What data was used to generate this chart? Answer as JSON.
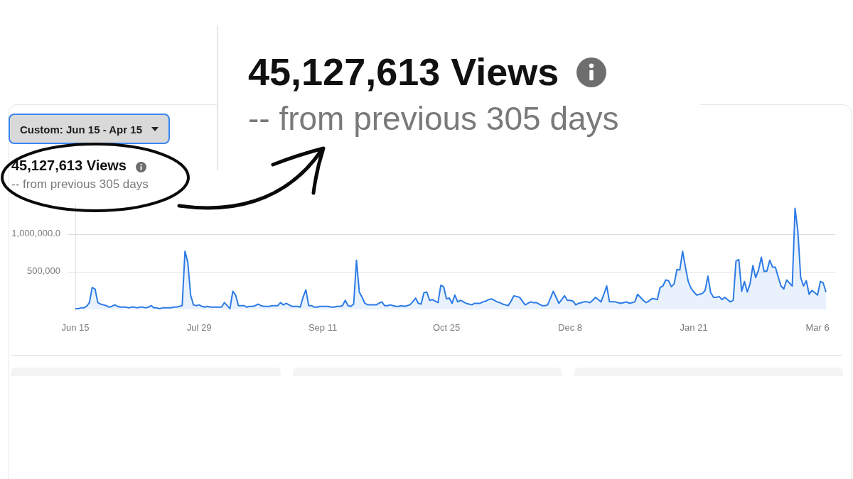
{
  "chart_data": {
    "type": "area",
    "title": "45,127,613 Views",
    "subtitle": "-- from previous 305 days",
    "annotations": [
      "Custom: Jun 15 - Apr 15"
    ],
    "categories": [
      "Jun 15",
      null,
      null,
      null,
      null,
      null,
      null,
      null,
      null,
      null,
      null,
      null,
      null,
      null,
      null,
      null,
      null,
      null,
      null,
      null,
      null,
      null,
      null,
      null,
      null,
      null,
      null,
      null,
      null,
      null,
      null,
      null,
      null,
      null,
      null,
      null,
      null,
      null,
      null,
      null,
      null,
      null,
      null,
      null,
      "Jul 29",
      null,
      null,
      null,
      null,
      null,
      null,
      null,
      null,
      null,
      null,
      null,
      null,
      null,
      null,
      null,
      null,
      null,
      null,
      null,
      null,
      null,
      null,
      null,
      null,
      null,
      null,
      null,
      null,
      null,
      null,
      null,
      null,
      null,
      null,
      null,
      null,
      null,
      null,
      null,
      null,
      null,
      null,
      null,
      "Sep 11",
      null,
      null,
      null,
      null,
      null,
      null,
      null,
      null,
      null,
      null,
      null,
      null,
      null,
      null,
      null,
      null,
      null,
      null,
      null,
      null,
      null,
      null,
      null,
      null,
      null,
      null,
      null,
      null,
      null,
      null,
      null,
      null,
      null,
      null,
      null,
      null,
      null,
      null,
      null,
      null,
      null,
      null,
      null,
      "Oct 25",
      null,
      null,
      null,
      null,
      null,
      null,
      null,
      null,
      null,
      null,
      null,
      null,
      null,
      null,
      null,
      null,
      null,
      null,
      null,
      null,
      null,
      null,
      null,
      null,
      null,
      null,
      null,
      null,
      null,
      null,
      null,
      null,
      null,
      null,
      null,
      null,
      null,
      null,
      null,
      null,
      null,
      null,
      null,
      "Dec 8",
      null,
      null,
      null,
      null,
      null,
      null,
      null,
      null,
      null,
      null,
      null,
      null,
      null,
      null,
      null,
      null,
      null,
      null,
      null,
      null,
      null,
      null,
      null,
      null,
      null,
      null,
      null,
      null,
      null,
      null,
      null,
      null,
      null,
      null,
      null,
      null,
      null,
      null,
      null,
      null,
      null,
      null,
      null,
      "Jan 21",
      null,
      null,
      null,
      null,
      null,
      null,
      null,
      null,
      null,
      null,
      null,
      null,
      null,
      null,
      null,
      null,
      null,
      null,
      null,
      null,
      null,
      null,
      null,
      null,
      null,
      null,
      null,
      null,
      null,
      null,
      null,
      null,
      null,
      null,
      null,
      null,
      null,
      null,
      null,
      null,
      null,
      null,
      null,
      "Mar 6",
      null,
      null,
      null
    ],
    "values": [
      10000,
      10000,
      20000,
      20000,
      40000,
      90000,
      290000,
      270000,
      90000,
      70000,
      60000,
      50000,
      30000,
      40000,
      60000,
      40000,
      30000,
      30000,
      30000,
      20000,
      30000,
      30000,
      20000,
      30000,
      30000,
      20000,
      30000,
      50000,
      20000,
      20000,
      10000,
      20000,
      20000,
      20000,
      20000,
      30000,
      30000,
      40000,
      50000,
      770000,
      620000,
      190000,
      60000,
      50000,
      60000,
      40000,
      30000,
      40000,
      30000,
      30000,
      30000,
      30000,
      30000,
      90000,
      50000,
      10000,
      240000,
      190000,
      50000,
      50000,
      50000,
      30000,
      40000,
      40000,
      50000,
      70000,
      50000,
      40000,
      40000,
      40000,
      50000,
      50000,
      50000,
      90000,
      60000,
      80000,
      60000,
      40000,
      40000,
      40000,
      30000,
      160000,
      260000,
      50000,
      50000,
      30000,
      30000,
      40000,
      40000,
      40000,
      40000,
      30000,
      30000,
      40000,
      40000,
      50000,
      120000,
      50000,
      40000,
      70000,
      650000,
      230000,
      160000,
      80000,
      60000,
      60000,
      60000,
      60000,
      80000,
      100000,
      50000,
      50000,
      60000,
      50000,
      40000,
      40000,
      50000,
      40000,
      50000,
      60000,
      100000,
      150000,
      80000,
      70000,
      220000,
      230000,
      120000,
      130000,
      110000,
      90000,
      320000,
      300000,
      140000,
      150000,
      80000,
      190000,
      100000,
      120000,
      100000,
      80000,
      70000,
      60000,
      80000,
      80000,
      80000,
      100000,
      110000,
      130000,
      140000,
      120000,
      100000,
      90000,
      70000,
      60000,
      50000,
      110000,
      180000,
      170000,
      160000,
      110000,
      60000,
      80000,
      100000,
      90000,
      90000,
      70000,
      50000,
      50000,
      60000,
      150000,
      240000,
      160000,
      80000,
      130000,
      180000,
      120000,
      120000,
      110000,
      60000,
      80000,
      90000,
      100000,
      100000,
      90000,
      120000,
      160000,
      130000,
      100000,
      200000,
      310000,
      100000,
      100000,
      100000,
      90000,
      80000,
      90000,
      100000,
      80000,
      90000,
      100000,
      200000,
      160000,
      120000,
      90000,
      110000,
      140000,
      140000,
      130000,
      290000,
      310000,
      390000,
      380000,
      300000,
      340000,
      530000,
      520000,
      770000,
      560000,
      370000,
      280000,
      230000,
      190000,
      200000,
      210000,
      250000,
      440000,
      220000,
      160000,
      160000,
      170000,
      130000,
      160000,
      130000,
      100000,
      120000,
      640000,
      660000,
      240000,
      370000,
      230000,
      340000,
      580000,
      420000,
      520000,
      690000,
      500000,
      510000,
      650000,
      560000,
      560000,
      430000,
      310000,
      270000,
      390000,
      350000,
      310000,
      1340000,
      1030000,
      420000,
      310000,
      380000,
      200000,
      250000,
      220000,
      190000,
      370000,
      350000,
      230000
    ],
    "color": "#2c7be5",
    "marker": "none",
    "grid": "y",
    "ylim": [
      0,
      1400000
    ],
    "yticks": [
      {
        "value": 500000,
        "label": "500,000"
      },
      {
        "value": 1000000,
        "label": "1,000,000.0"
      }
    ]
  }
}
